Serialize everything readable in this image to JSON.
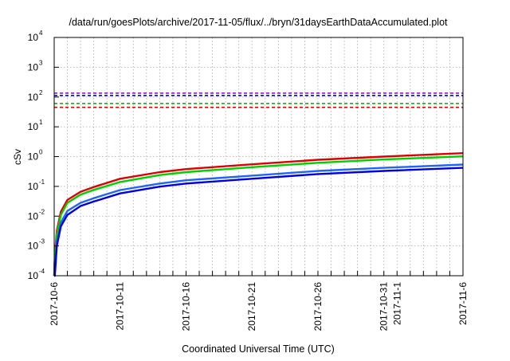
{
  "chart_data": {
    "type": "line",
    "title": "/data/run/goesPlots/archive/2017-11-05/flux/../bryn/31daysEarthDataAccumulated.plot",
    "xlabel": "Coordinated Universal Time (UTC)",
    "ylabel": "cSv",
    "yscale": "log",
    "ylim": [
      0.0001,
      10000
    ],
    "xlim_days": [
      0,
      31
    ],
    "grid": true,
    "y_ticks": [
      {
        "exp": -4,
        "label": "10",
        "sup": "-4"
      },
      {
        "exp": -3,
        "label": "10",
        "sup": "-3"
      },
      {
        "exp": -2,
        "label": "10",
        "sup": "-2"
      },
      {
        "exp": -1,
        "label": "10",
        "sup": "-1"
      },
      {
        "exp": 0,
        "label": "10",
        "sup": "0"
      },
      {
        "exp": 1,
        "label": "10",
        "sup": "1"
      },
      {
        "exp": 2,
        "label": "10",
        "sup": "2"
      },
      {
        "exp": 3,
        "label": "10",
        "sup": "3"
      },
      {
        "exp": 4,
        "label": "10",
        "sup": "4"
      }
    ],
    "x_ticks": [
      {
        "day": 0,
        "label": "2017-10-6"
      },
      {
        "day": 5,
        "label": "2017-10-11"
      },
      {
        "day": 10,
        "label": "2017-10-16"
      },
      {
        "day": 15,
        "label": "2017-10-21"
      },
      {
        "day": 20,
        "label": "2017-10-26"
      },
      {
        "day": 25,
        "label": "2017-10-31"
      },
      {
        "day": 26,
        "label": "2017-11-1"
      },
      {
        "day": 31,
        "label": "2017-11-6"
      }
    ],
    "thresholds": [
      {
        "name": "purple-limit",
        "color": "#9400d3",
        "value": 135
      },
      {
        "name": "blue-limit",
        "color": "#0000ff",
        "value": 113
      },
      {
        "name": "green-limit",
        "color": "#00c000",
        "value": 61
      },
      {
        "name": "red-limit",
        "color": "#e00000",
        "value": 45
      }
    ],
    "series": [
      {
        "name": "red",
        "color": "#e00000",
        "x": [
          0.05,
          0.2,
          0.5,
          1,
          2,
          3,
          5,
          8,
          10,
          15,
          20,
          25,
          31
        ],
        "values": [
          0.0005,
          0.0032,
          0.014,
          0.035,
          0.066,
          0.095,
          0.18,
          0.3,
          0.38,
          0.55,
          0.78,
          1.0,
          1.3
        ]
      },
      {
        "name": "green",
        "color": "#00d000",
        "x": [
          0.05,
          0.2,
          0.5,
          1,
          2,
          3,
          5,
          8,
          10,
          15,
          20,
          25,
          31
        ],
        "values": [
          0.0004,
          0.0025,
          0.011,
          0.028,
          0.053,
          0.076,
          0.14,
          0.24,
          0.3,
          0.44,
          0.62,
          0.8,
          1.02
        ]
      },
      {
        "name": "light-blue",
        "color": "#1e64ff",
        "x": [
          0.05,
          0.2,
          0.5,
          1,
          2,
          3,
          5,
          8,
          10,
          15,
          20,
          25,
          31
        ],
        "values": [
          0.0002,
          0.0014,
          0.006,
          0.015,
          0.028,
          0.04,
          0.075,
          0.125,
          0.16,
          0.23,
          0.33,
          0.42,
          0.54
        ]
      },
      {
        "name": "blue",
        "color": "#0000e0",
        "x": [
          0.05,
          0.2,
          0.5,
          1,
          2,
          3,
          5,
          8,
          10,
          15,
          20,
          25,
          31
        ],
        "values": [
          0.0001,
          0.001,
          0.0045,
          0.011,
          0.022,
          0.031,
          0.058,
          0.098,
          0.125,
          0.18,
          0.26,
          0.33,
          0.42
        ]
      }
    ]
  }
}
